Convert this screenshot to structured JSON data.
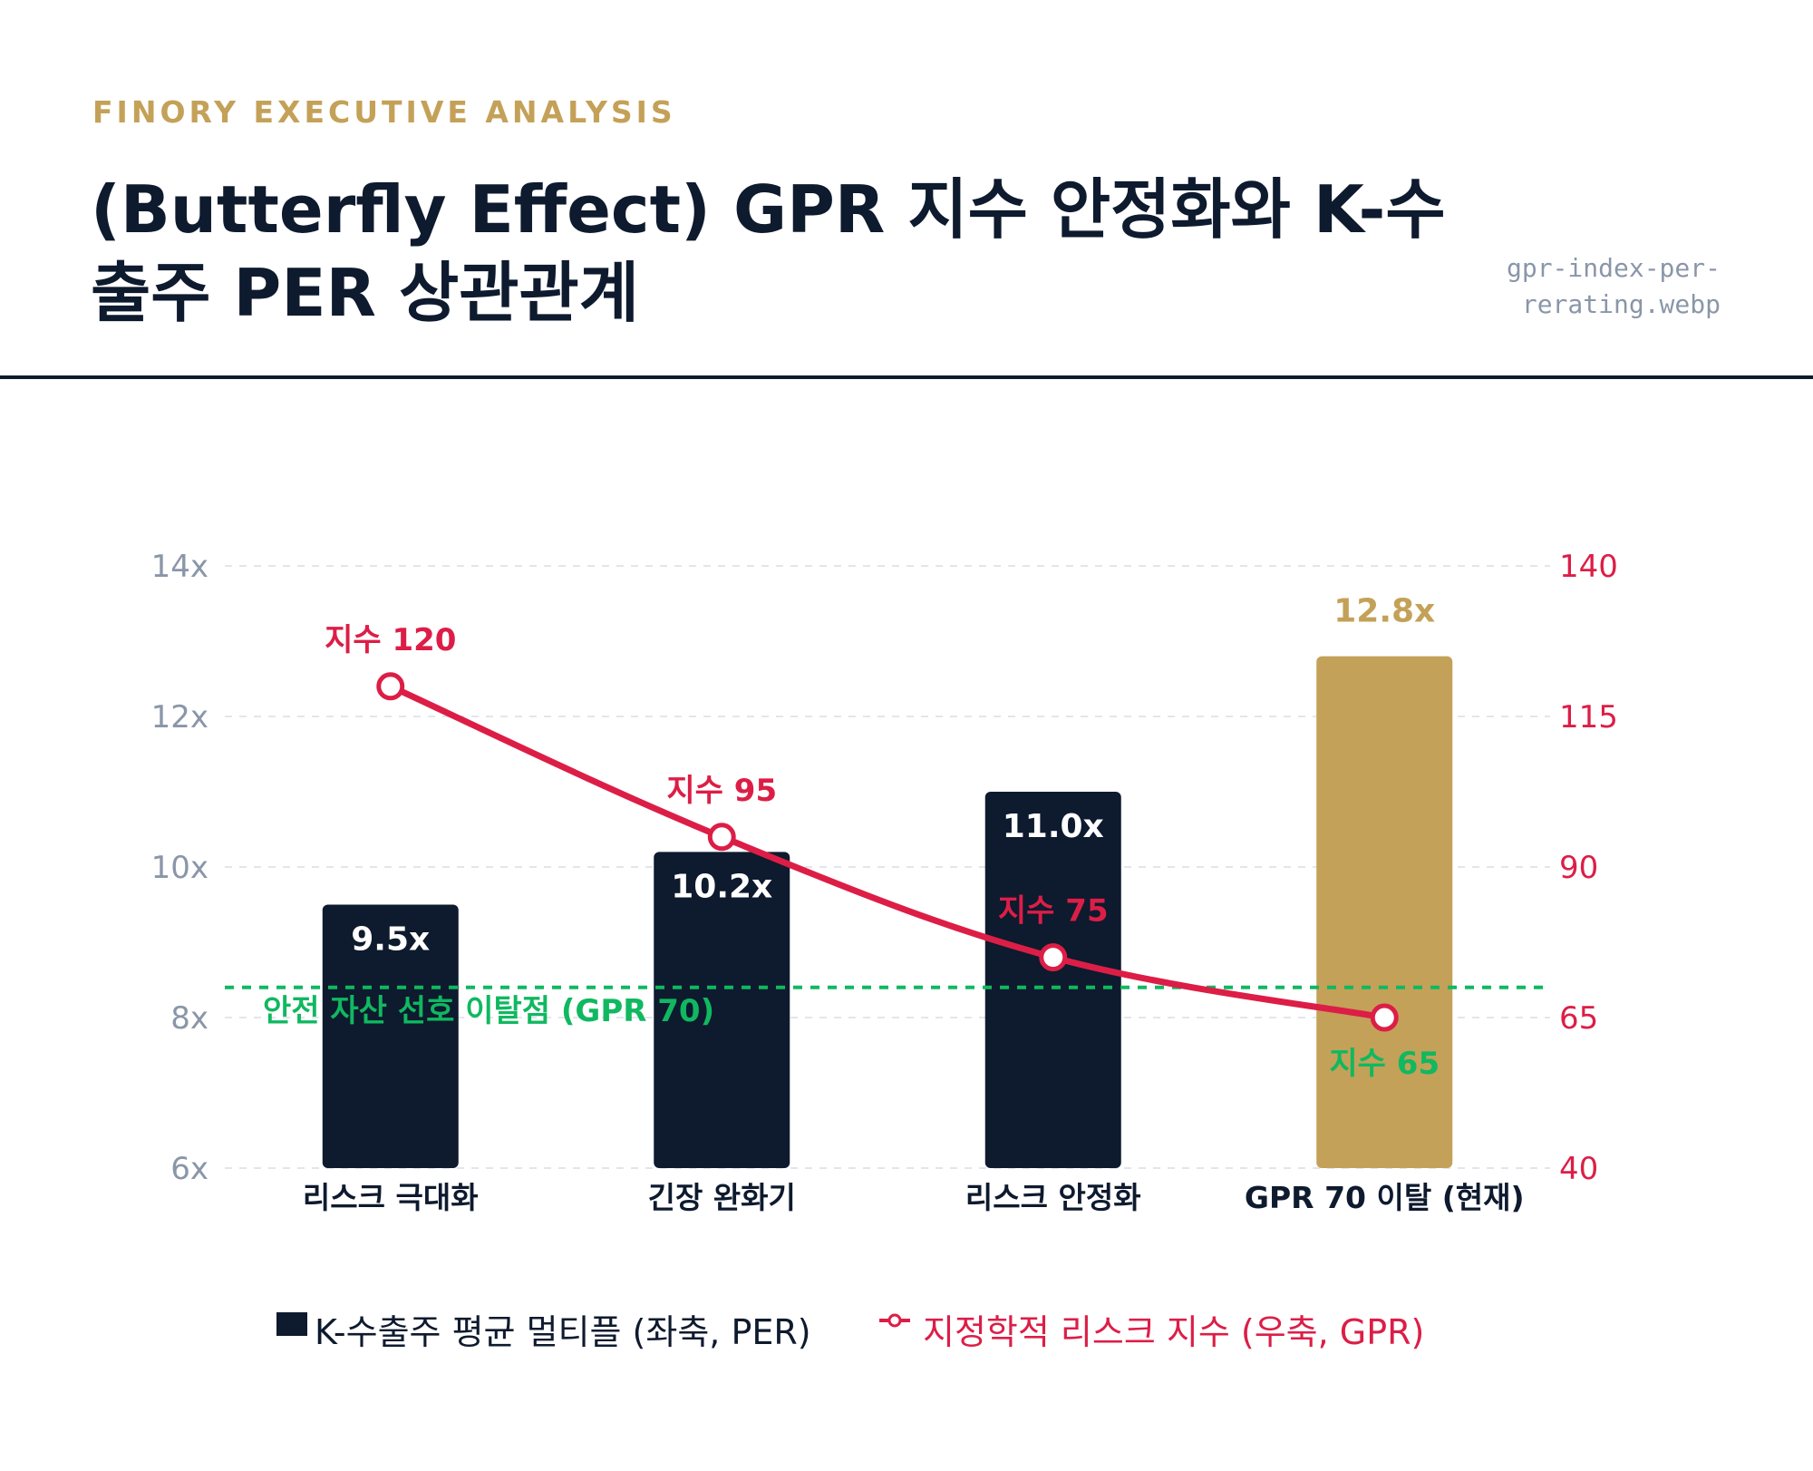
{
  "header": {
    "eyebrow": "FINORY EXECUTIVE ANALYSIS",
    "title_line1": "(Butterfly Effect) GPR 지수 안정화와 K-수",
    "title_line2": "출주 PER 상관관계",
    "filename_line1": "gpr-index-per-",
    "filename_line2": "rerating.webp"
  },
  "colors": {
    "navy": "#0E1A2E",
    "gold": "#C4A158",
    "red": "#DC1E47",
    "green": "#10B860",
    "axis_left": "#8A96A8"
  },
  "chart_data": {
    "type": "bar",
    "categories": [
      "리스크 극대화",
      "긴장 완화기",
      "리스크 안정화",
      "GPR 70 이탈 (현재)"
    ],
    "series": [
      {
        "name": "K-수출주 평균 멀티플 (좌축, PER)",
        "type": "bar",
        "axis": "left",
        "values": [
          9.5,
          10.2,
          11.0,
          12.8
        ],
        "labels": [
          "9.5x",
          "10.2x",
          "11.0x",
          "12.8x"
        ],
        "highlight_index": 3
      },
      {
        "name": "지정학적 리스크 지수 (우축, GPR)",
        "type": "line",
        "axis": "right",
        "values": [
          120,
          95,
          75,
          65
        ],
        "labels": [
          "지수 120",
          "지수 95",
          "지수 75",
          "지수 65"
        ]
      }
    ],
    "y_left": {
      "ylim": [
        6,
        14
      ],
      "ticks": [
        "6x",
        "8x",
        "10x",
        "12x",
        "14x"
      ],
      "tick_values": [
        6,
        8,
        10,
        12,
        14
      ]
    },
    "y_right": {
      "ylim": [
        40,
        140
      ],
      "ticks": [
        "40",
        "65",
        "90",
        "115",
        "140"
      ],
      "tick_values": [
        40,
        65,
        90,
        115,
        140
      ]
    },
    "reference_line": {
      "axis": "right",
      "value": 70,
      "label": "안전 자산 선호 이탈점 (GPR 70)"
    },
    "grid": true,
    "legend_position": "bottom-center"
  }
}
